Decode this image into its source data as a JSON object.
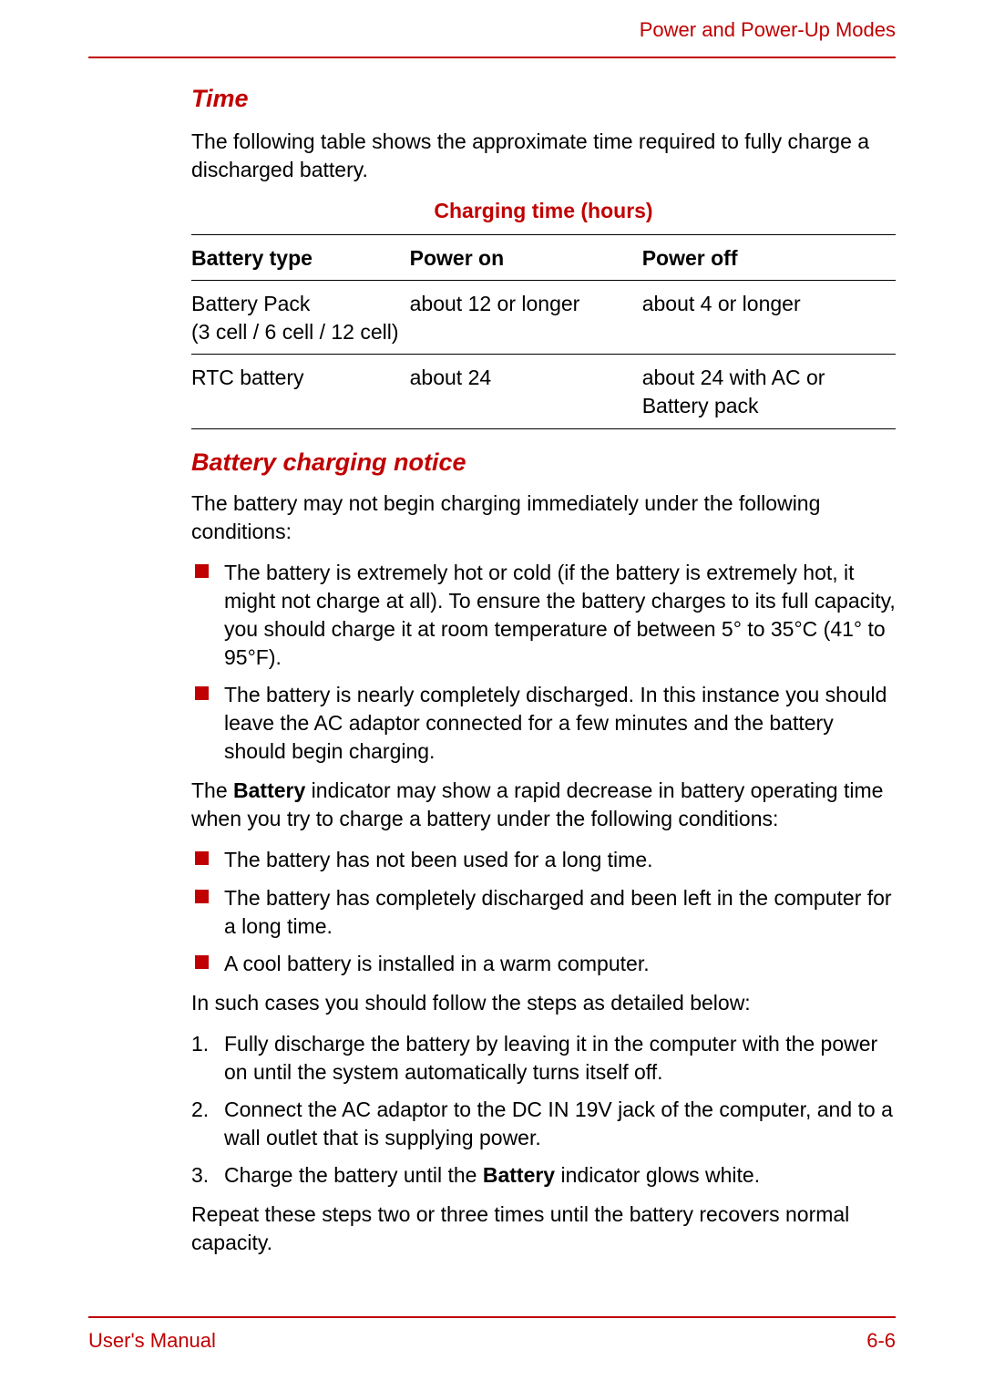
{
  "header": {
    "section": "Power and Power-Up Modes"
  },
  "section_time": {
    "title": "Time",
    "intro": "The following table shows the approximate time required to fully charge a discharged battery.",
    "table": {
      "title": "Charging time (hours)",
      "columns": [
        "Battery type",
        "Power on",
        "Power off"
      ],
      "rows": [
        {
          "type_line1": "Battery Pack",
          "type_line2": "(3 cell / 6 cell / 12 cell)",
          "power_on": "about 12 or longer",
          "power_off": "about 4 or longer"
        },
        {
          "type_line1": "RTC battery",
          "type_line2": "",
          "power_on": "about 24",
          "power_off": "about 24 with AC or Battery pack"
        }
      ]
    }
  },
  "section_notice": {
    "title": "Battery charging notice",
    "para1": "The battery may not begin charging immediately under the following conditions:",
    "list1": [
      "The battery is extremely hot or cold (if the battery is extremely hot, it might not charge at all). To ensure the battery charges to its full capacity, you should charge it at room temperature of between 5° to 35°C (41° to 95°F).",
      "The battery is nearly completely discharged. In this instance you should leave the AC adaptor connected for a few minutes and the battery should begin charging."
    ],
    "para2_pre": "The ",
    "para2_bold": "Battery",
    "para2_post": " indicator may show a rapid decrease in battery operating time when you try to charge a battery under the following conditions:",
    "list2": [
      "The battery has not been used for a long time.",
      "The battery has completely discharged and been left in the computer for a long time.",
      "A cool battery is installed in a warm computer."
    ],
    "para3": "In such cases you should follow the steps as detailed below:",
    "steps": [
      "Fully discharge the battery by leaving it in the computer with the power on until the system automatically turns itself off.",
      "Connect the AC adaptor to the DC IN 19V jack of the computer, and to a wall outlet that is supplying power."
    ],
    "step3_pre": "Charge the battery until the ",
    "step3_bold": "Battery",
    "step3_post": " indicator glows white.",
    "para4": "Repeat these steps two or three times until the battery recovers normal capacity."
  },
  "footer": {
    "left": "User's Manual",
    "right": "6-6"
  },
  "colors": {
    "accent": "#c00000",
    "text": "#000000",
    "background": "#ffffff"
  }
}
